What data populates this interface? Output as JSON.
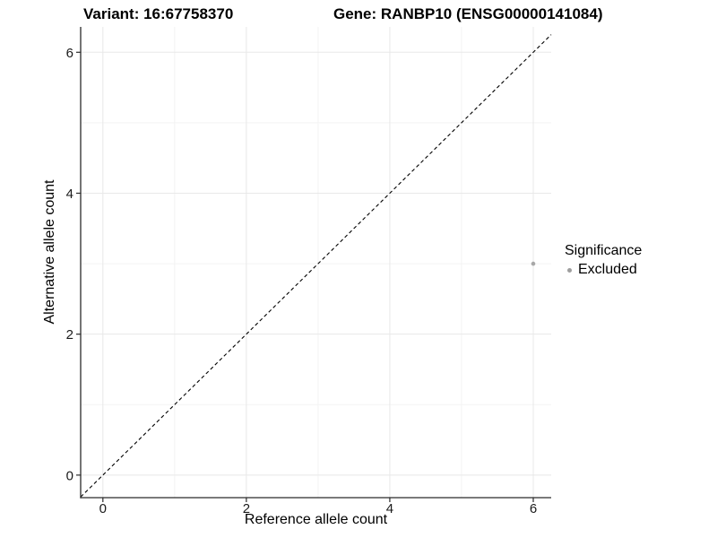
{
  "chart_data": {
    "type": "scatter",
    "title_left": "Variant: 16:67758370",
    "title_right": "Gene: RANBP10 (ENSG00000141084)",
    "xlabel": "Reference allele count",
    "ylabel": "Alternative allele count",
    "xlim": [
      -0.31,
      6.25
    ],
    "ylim": [
      -0.32,
      6.36
    ],
    "x_ticks": [
      0,
      2,
      4,
      6
    ],
    "y_ticks": [
      0,
      2,
      4,
      6
    ],
    "x_minor_ticks": [
      1,
      3,
      5
    ],
    "y_minor_ticks": [
      1,
      3,
      5
    ],
    "grid": "major+minor",
    "identity_line": {
      "style": "dashed",
      "color": "#000000",
      "slope": 1,
      "intercept": 0
    },
    "series": [
      {
        "name": "Excluded",
        "color": "#a8a8a8",
        "point_radius": 2.3,
        "points": [
          {
            "x": 6,
            "y": 3
          }
        ]
      }
    ],
    "legend": {
      "title": "Significance",
      "position": "right",
      "items": [
        {
          "label": "Excluded",
          "color": "#9e9e9e"
        }
      ]
    }
  },
  "colors": {
    "background": "#ffffff",
    "grid_major": "#e8e8e8",
    "grid_minor": "#f3f3f3",
    "axis_line": "#2a2a2a",
    "tick_mark": "#2a2a2a",
    "text": "#000000"
  }
}
